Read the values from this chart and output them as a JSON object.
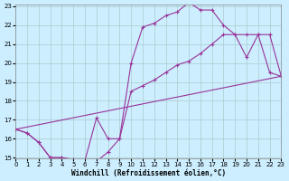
{
  "xlabel": "Windchill (Refroidissement éolien,°C)",
  "bg_color": "#cceeff",
  "line_color": "#993399",
  "grid_color": "#aacccc",
  "xlim": [
    0,
    23
  ],
  "ylim": [
    15,
    23
  ],
  "yticks": [
    15,
    16,
    17,
    18,
    19,
    20,
    21,
    22,
    23
  ],
  "xticks": [
    0,
    1,
    2,
    3,
    4,
    5,
    6,
    7,
    8,
    9,
    10,
    11,
    12,
    13,
    14,
    15,
    16,
    17,
    18,
    19,
    20,
    21,
    22,
    23
  ],
  "line1_x": [
    0,
    1,
    2,
    3,
    4,
    5,
    6,
    7,
    8,
    9,
    10,
    11,
    12,
    13,
    14,
    15,
    16,
    17,
    18,
    19,
    20,
    21,
    22,
    23
  ],
  "line1_y": [
    16.5,
    16.3,
    15.8,
    15.0,
    15.0,
    14.9,
    14.85,
    17.1,
    16.0,
    16.0,
    20.0,
    21.9,
    22.1,
    22.5,
    22.7,
    23.2,
    22.8,
    22.8,
    22.0,
    21.5,
    20.3,
    21.5,
    21.5,
    19.3
  ],
  "line2_x": [
    0,
    1,
    2,
    3,
    4,
    5,
    6,
    7,
    8,
    9,
    10,
    11,
    12,
    13,
    14,
    15,
    16,
    17,
    18,
    19,
    20,
    21,
    22,
    23
  ],
  "line2_y": [
    16.5,
    16.3,
    15.8,
    15.0,
    15.0,
    14.9,
    14.85,
    14.8,
    15.3,
    16.0,
    18.5,
    18.8,
    19.1,
    19.5,
    19.9,
    20.1,
    20.5,
    21.0,
    21.5,
    21.5,
    21.5,
    21.5,
    19.5,
    19.3
  ],
  "line3_x": [
    0,
    23
  ],
  "line3_y": [
    16.5,
    19.3
  ]
}
